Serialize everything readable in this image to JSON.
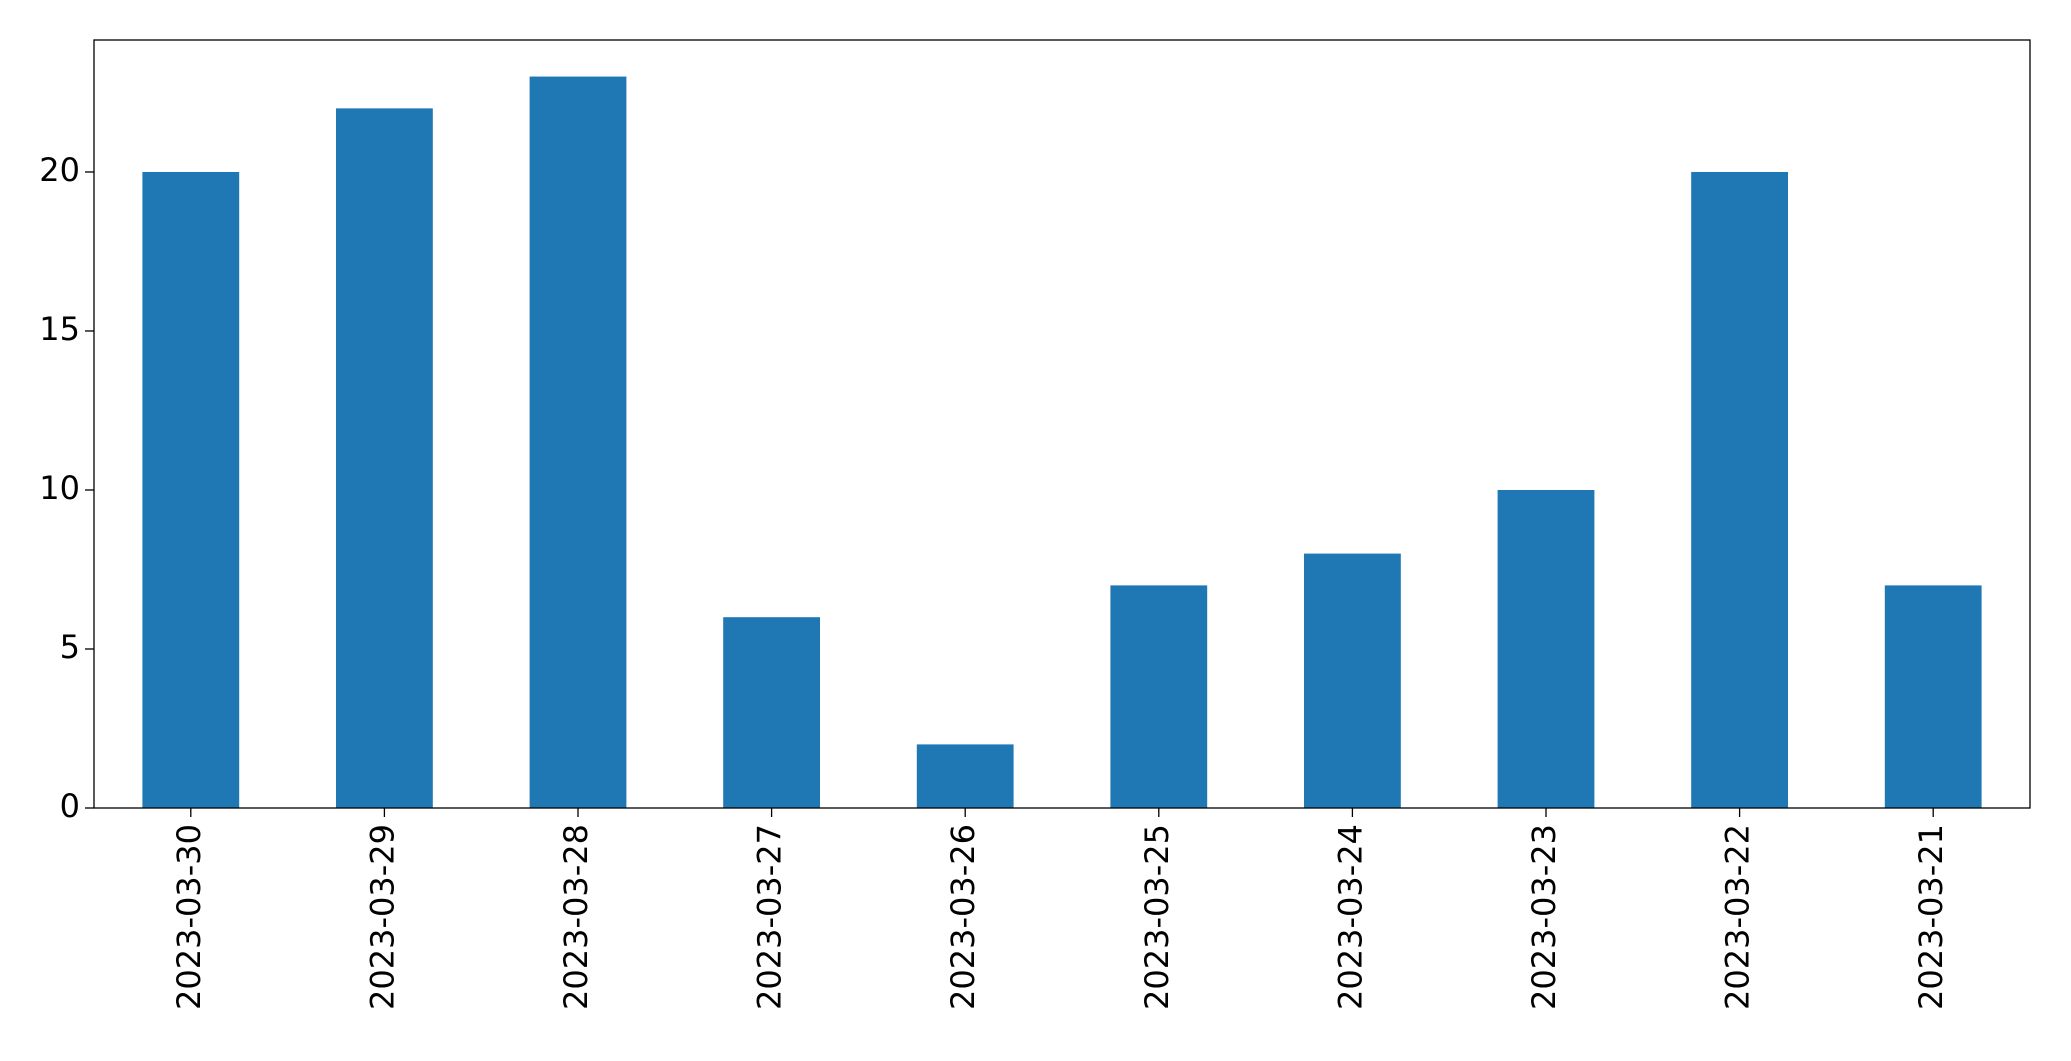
{
  "chart_data": {
    "type": "bar",
    "categories": [
      "2023-03-30",
      "2023-03-29",
      "2023-03-28",
      "2023-03-27",
      "2023-03-26",
      "2023-03-25",
      "2023-03-24",
      "2023-03-23",
      "2023-03-22",
      "2023-03-21"
    ],
    "values": [
      20,
      22,
      23,
      6,
      2,
      7,
      8,
      10,
      20,
      7
    ],
    "color": "#1f77b4",
    "ylim": [
      0,
      24.15
    ],
    "yticks": [
      0,
      5,
      10,
      15,
      20
    ],
    "grid": false
  }
}
